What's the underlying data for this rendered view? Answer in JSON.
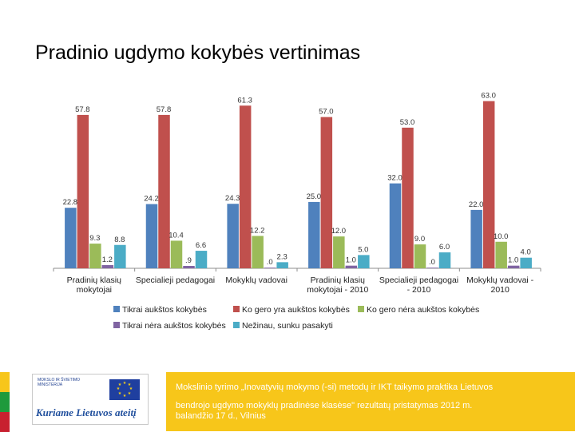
{
  "slide": {
    "title": "Pradinio ugdymo kokybės vertinimas"
  },
  "chart_data": {
    "type": "bar",
    "title": "",
    "xlabel": "",
    "ylabel": "",
    "ylim": [
      0,
      70
    ],
    "grid": false,
    "legend_position": "bottom",
    "categories": [
      [
        "Pradinių klasių",
        "mokytojai"
      ],
      [
        "Specialieji pedagogai"
      ],
      [
        "Mokyklų vadovai"
      ],
      [
        "Pradinių klasių",
        "mokytojai - 2010"
      ],
      [
        "Specialieji pedagogai",
        "- 2010"
      ],
      [
        "Mokyklų vadovai -",
        "2010"
      ]
    ],
    "series": [
      {
        "name": "Tikrai aukštos kokybės",
        "color": "#4f81bd",
        "values": [
          22.8,
          24.2,
          24.3,
          25.0,
          32.0,
          22.0
        ],
        "labels": [
          "22.8",
          "24.2",
          "24.3",
          "25.0",
          "32.0",
          "22.0"
        ]
      },
      {
        "name": "Ko gero yra aukštos kokybės",
        "color": "#c0504d",
        "values": [
          57.8,
          57.8,
          61.3,
          57.0,
          53.0,
          63.0
        ],
        "labels": [
          "57.8",
          "57.8",
          "61.3",
          "57.0",
          "53.0",
          "63.0"
        ]
      },
      {
        "name": "Ko gero nėra aukštos kokybės",
        "color": "#9bbb59",
        "values": [
          9.3,
          10.4,
          12.2,
          12.0,
          9.0,
          10.0
        ],
        "labels": [
          "9.3",
          "10.4",
          "12.2",
          "12.0",
          "9.0",
          "10.0"
        ]
      },
      {
        "name": "Tikrai nėra aukštos kokybės",
        "color": "#8064a2",
        "values": [
          1.2,
          0.9,
          0.0,
          1.0,
          0.0,
          1.0
        ],
        "labels": [
          "1.2",
          ".9",
          ".0",
          "1.0",
          ".0",
          "1.0"
        ]
      },
      {
        "name": "Nežinau, sunku pasakyti",
        "color": "#4bacc6",
        "values": [
          8.8,
          6.6,
          2.3,
          5.0,
          6.0,
          4.0
        ],
        "labels": [
          "8.8",
          "6.6",
          "2.3",
          "5.0",
          "6.0",
          "4.0"
        ]
      }
    ]
  },
  "footer": {
    "logo_text": "Kuriame Lietuvos ateitį",
    "logo_small_text": [
      "MOKSLO IR ŠVIETIMO",
      "MINISTERIJA"
    ],
    "info_line1": "Mokslinio tyrimo „Inovatyvių mokymo (-si) metodų ir IKT taikymo praktika Lietuvos",
    "info_line2": "bendrojo ugdymo mokyklų pradinėse klasėse\" rezultatų pristatymas 2012 m.",
    "info_line3": "balandžio 17 d., Vilnius",
    "flag_colors": [
      "#f7c61a",
      "#1e9a3c",
      "#c8202f"
    ],
    "eu_flag_color": "#1f3f9f"
  }
}
